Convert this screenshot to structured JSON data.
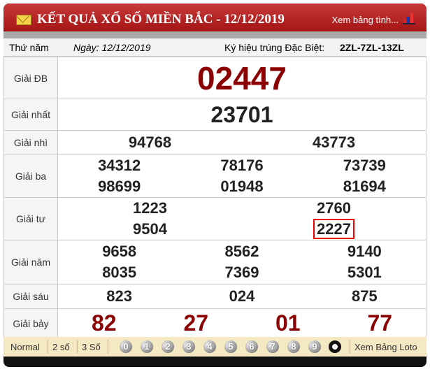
{
  "header": {
    "title": "KẾT QUẢ XỔ SỐ MIỀN BẮC - 12/12/2019",
    "link": "Xem bảng tình..."
  },
  "info": {
    "weekday": "Thứ năm",
    "date": "Ngày: 12/12/2019",
    "code_label": "Ký hiệu trúng Đặc Biệt:",
    "code": "2ZL-7ZL-13ZL"
  },
  "prizes": [
    {
      "label": "Giải ĐB",
      "numbers": [
        "02447"
      ]
    },
    {
      "label": "Giải nhất",
      "numbers": [
        "23701"
      ]
    },
    {
      "label": "Giải nhì",
      "numbers": [
        "94768",
        "43773"
      ]
    },
    {
      "label": "Giải ba",
      "numbers": [
        "34312",
        "78176",
        "73739",
        "98699",
        "01948",
        "81694"
      ]
    },
    {
      "label": "Giải tư",
      "numbers": [
        "1223",
        "2760",
        "9504",
        "2227"
      ]
    },
    {
      "label": "Giải năm",
      "numbers": [
        "9658",
        "8562",
        "9140",
        "8035",
        "7369",
        "5301"
      ]
    },
    {
      "label": "Giải sáu",
      "numbers": [
        "823",
        "024",
        "875"
      ]
    },
    {
      "label": "Giải bảy",
      "numbers": [
        "82",
        "27",
        "01",
        "77"
      ]
    }
  ],
  "highlighted": "2227",
  "footer": {
    "modes": [
      "Normal",
      "2 số",
      "3 Số"
    ],
    "digits": [
      "0",
      "1",
      "2",
      "3",
      "4",
      "5",
      "6",
      "7",
      "8",
      "9"
    ],
    "loto": "Xem Bảng Loto"
  },
  "colors": {
    "header": "#b01e1e",
    "special": "#8b0000",
    "highlight": "#e00000",
    "footer": "#f5e9c4"
  }
}
